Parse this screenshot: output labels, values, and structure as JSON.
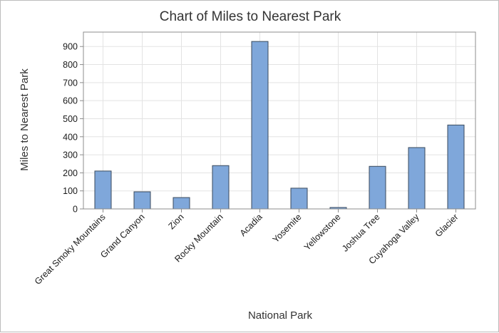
{
  "chart_data": {
    "type": "bar",
    "title": "Chart of Miles to Nearest Park",
    "xlabel": "National Park",
    "ylabel": "Miles to Nearest Park",
    "categories": [
      "Great Smoky Mountains",
      "Grand Canyon",
      "Zion",
      "Rocky Mountain",
      "Acadia",
      "Yosemite",
      "Yellowstone",
      "Joshua Tree",
      "Cuyahoga Valley",
      "Glacier"
    ],
    "values": [
      210,
      95,
      63,
      240,
      928,
      115,
      8,
      236,
      340,
      465
    ],
    "ylim": [
      0,
      980
    ],
    "yticks": [
      0,
      100,
      200,
      300,
      400,
      500,
      600,
      700,
      800,
      900
    ],
    "grid": true,
    "colors": {
      "bar_fill": "#7fa7da",
      "bar_stroke": "#3a4a5c",
      "grid": "#e3e3e3",
      "axis": "#8c8c8c"
    }
  }
}
